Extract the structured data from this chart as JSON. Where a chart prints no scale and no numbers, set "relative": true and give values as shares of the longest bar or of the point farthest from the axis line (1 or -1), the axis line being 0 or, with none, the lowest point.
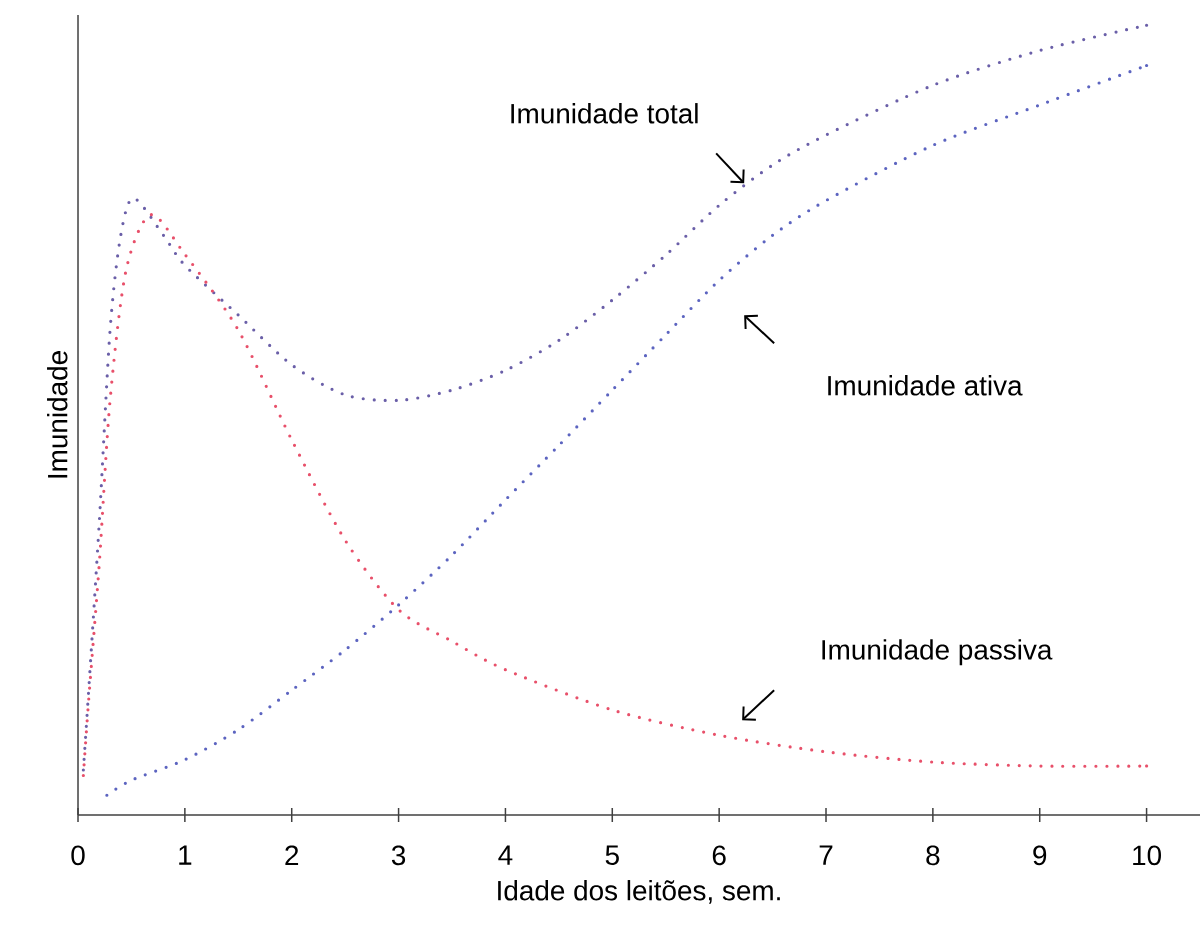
{
  "chart_data": {
    "type": "line",
    "relative": true,
    "xlabel": "Idade dos leitões, sem.",
    "ylabel": "Imunidade",
    "xlim": [
      0,
      10.5
    ],
    "xticks": [
      0,
      1,
      2,
      3,
      4,
      5,
      6,
      7,
      8,
      9,
      10
    ],
    "grid": false,
    "marker": "none",
    "line_style": "dotted",
    "series": [
      {
        "color": "#6a5fa8",
        "x": [
          0.05,
          0.1,
          0.2,
          0.3,
          0.4,
          0.52,
          0.8,
          1,
          1.5,
          2,
          2.5,
          3,
          3.5,
          4,
          4.5,
          5,
          5.5,
          6,
          6.5,
          7,
          8,
          9,
          10
        ],
        "values": [
          0.057,
          0.158,
          0.373,
          0.614,
          0.734,
          0.781,
          0.734,
          0.696,
          0.633,
          0.57,
          0.532,
          0.525,
          0.538,
          0.563,
          0.601,
          0.652,
          0.709,
          0.772,
          0.823,
          0.861,
          0.924,
          0.968,
          1.0
        ]
      },
      {
        "color": "#5c64c0",
        "x": [
          0.27,
          0.5,
          1,
          1.5,
          2,
          2.5,
          3,
          3.5,
          4,
          4.5,
          5,
          5.5,
          6,
          6.5,
          7,
          8,
          9,
          10
        ],
        "values": [
          0.025,
          0.044,
          0.07,
          0.108,
          0.158,
          0.209,
          0.266,
          0.329,
          0.399,
          0.468,
          0.538,
          0.608,
          0.677,
          0.734,
          0.778,
          0.848,
          0.899,
          0.949
        ]
      },
      {
        "color": "#e8506a",
        "x": [
          0.05,
          0.1,
          0.2,
          0.3,
          0.45,
          0.68,
          1,
          1.5,
          2,
          2.5,
          3,
          3.5,
          4,
          5,
          6,
          7,
          8,
          9,
          10
        ],
        "values": [
          0.05,
          0.146,
          0.32,
          0.525,
          0.69,
          0.76,
          0.71,
          0.614,
          0.475,
          0.348,
          0.26,
          0.22,
          0.184,
          0.133,
          0.101,
          0.08,
          0.067,
          0.062,
          0.062
        ]
      }
    ],
    "annotations": [
      "Imunidade total",
      "Imunidade ativa",
      "Imunidade passiva"
    ]
  }
}
